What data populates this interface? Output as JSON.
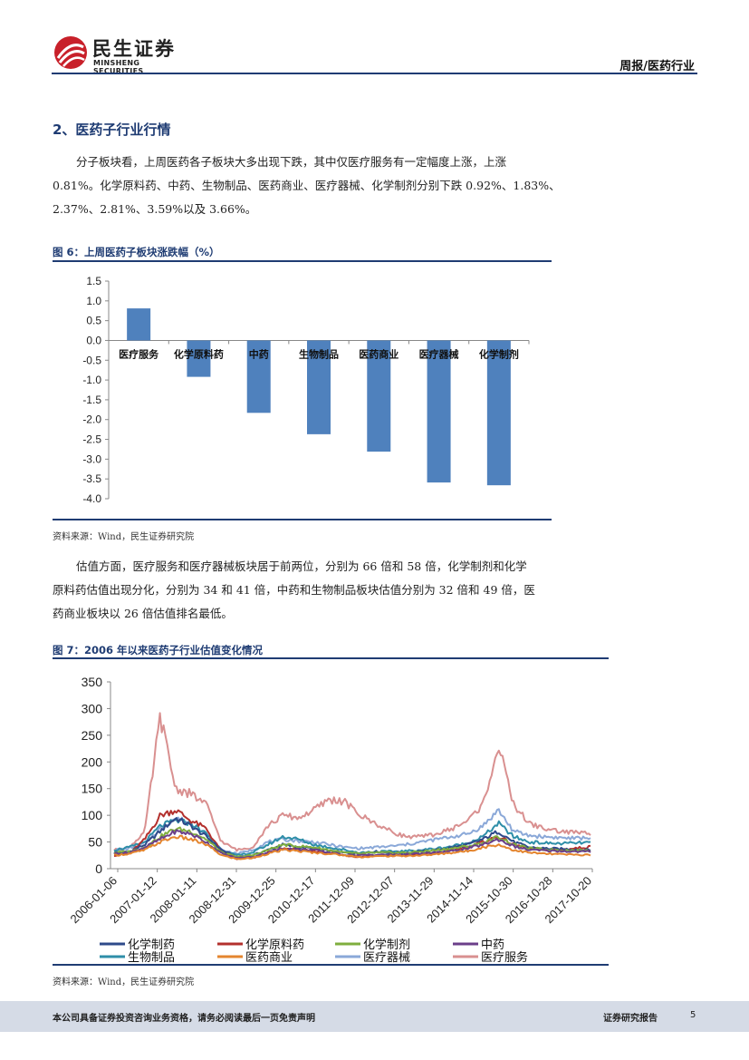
{
  "header": {
    "logo_cn": "民生证券",
    "logo_en": "MINSHENG SECURITIES",
    "report_tag": "周报/医药行业",
    "brand_color": "#c8202a"
  },
  "section": {
    "title": "2、医药子行业行情"
  },
  "paragraph1": {
    "line1": "分子板块看，上周医药各子板块大多出现下跌，其中仅医疗服务有一定幅度上涨，上涨",
    "line2": "0.81%。化学原料药、中药、生物制品、医药商业、医疗器械、化学制剂分别下跌 0.92%、1.83%、",
    "line3": "2.37%、2.81%、3.59%以及 3.66%。"
  },
  "paragraph2": {
    "line1": "估值方面，医疗服务和医疗器械板块居于前两位，分别为 66 倍和 58 倍，化学制剂和化学",
    "line2": "原料药估值出现分化，分别为 34 和 41 倍，中药和生物制品板块估值分别为 32 倍和 49 倍，医",
    "line3": "药商业板块以 26 倍估值排名最低。"
  },
  "figure6": {
    "title": "图 6：上周医药子板块涨跌幅（%）",
    "source": "资料来源：Wind，民生证券研究院"
  },
  "figure7": {
    "title": "图 7：2006 年以来医药子行业估值变化情况",
    "source": "资料来源：Wind，民生证券研究院"
  },
  "chart_data": [
    {
      "type": "bar",
      "categories": [
        "医疗服务",
        "化学原料药",
        "中药",
        "生物制品",
        "医药商业",
        "医疗器械",
        "化学制剂"
      ],
      "values": [
        0.81,
        -0.92,
        -1.83,
        -2.37,
        -2.81,
        -3.59,
        -3.66
      ],
      "ylim": [
        -4.0,
        1.5
      ],
      "yticks": [
        "1.5",
        "1.0",
        "0.5",
        "0.0",
        "-0.5",
        "-1.0",
        "-1.5",
        "-2.0",
        "-2.5",
        "-3.0",
        "-3.5",
        "-4.0"
      ],
      "color": "#4f81bd",
      "grid": false
    },
    {
      "type": "line",
      "ylim": [
        0,
        350
      ],
      "yticks": [
        "350",
        "300",
        "250",
        "200",
        "150",
        "100",
        "50",
        "0"
      ],
      "xticks": [
        "2006-01-06",
        "2007-01-12",
        "2008-01-11",
        "2008-12-31",
        "2009-12-25",
        "2010-12-17",
        "2011-12-09",
        "2012-12-07",
        "2013-11-29",
        "2014-11-14",
        "2015-10-30",
        "2016-10-28",
        "2017-10-20"
      ],
      "legend_position": "bottom",
      "series": [
        {
          "name": "化学制药",
          "color": "#2e4a8a",
          "values": [
            30,
            32,
            45,
            70,
            95,
            80,
            60,
            35,
            22,
            25,
            35,
            45,
            40,
            38,
            33,
            30,
            28,
            32,
            30,
            30,
            32,
            35,
            40,
            45,
            55,
            70,
            50,
            40,
            38,
            37,
            36,
            35
          ]
        },
        {
          "name": "化学原料药",
          "color": "#b3302d",
          "values": [
            25,
            28,
            55,
            100,
            110,
            90,
            75,
            30,
            18,
            20,
            30,
            38,
            35,
            33,
            30,
            25,
            22,
            25,
            24,
            25,
            27,
            30,
            35,
            40,
            50,
            60,
            45,
            38,
            36,
            35,
            38,
            41
          ]
        },
        {
          "name": "化学制剂",
          "color": "#7fae3e",
          "values": [
            30,
            32,
            40,
            60,
            75,
            70,
            55,
            30,
            22,
            25,
            35,
            45,
            42,
            40,
            35,
            30,
            28,
            30,
            30,
            30,
            32,
            35,
            38,
            42,
            48,
            60,
            45,
            38,
            36,
            35,
            34,
            34
          ]
        },
        {
          "name": "中药",
          "color": "#6b3f8a",
          "values": [
            28,
            30,
            40,
            55,
            70,
            65,
            50,
            28,
            20,
            22,
            30,
            38,
            36,
            35,
            30,
            26,
            25,
            26,
            26,
            27,
            28,
            30,
            33,
            38,
            45,
            55,
            42,
            35,
            34,
            33,
            32,
            32
          ]
        },
        {
          "name": "生物制品",
          "color": "#2e8ea8",
          "values": [
            35,
            40,
            50,
            80,
            90,
            85,
            65,
            35,
            25,
            30,
            45,
            60,
            55,
            45,
            40,
            35,
            30,
            32,
            32,
            33,
            35,
            38,
            42,
            48,
            60,
            85,
            60,
            50,
            48,
            47,
            48,
            49
          ]
        },
        {
          "name": "医药商业",
          "color": "#e4852e",
          "values": [
            25,
            28,
            35,
            50,
            60,
            55,
            45,
            25,
            18,
            20,
            28,
            35,
            33,
            30,
            28,
            25,
            22,
            23,
            24,
            24,
            25,
            27,
            30,
            33,
            40,
            45,
            35,
            30,
            28,
            27,
            26,
            26
          ]
        },
        {
          "name": "医疗器械",
          "color": "#8aa8d8",
          "values": [
            35,
            38,
            48,
            75,
            95,
            85,
            65,
            35,
            28,
            35,
            50,
            55,
            52,
            50,
            45,
            40,
            38,
            40,
            42,
            45,
            50,
            55,
            60,
            65,
            80,
            110,
            70,
            62,
            60,
            58,
            57,
            58
          ]
        },
        {
          "name": "医疗服务",
          "color": "#d99090",
          "values": [
            35,
            40,
            70,
            285,
            150,
            140,
            120,
            50,
            35,
            40,
            80,
            100,
            95,
            110,
            130,
            125,
            100,
            85,
            70,
            60,
            60,
            65,
            75,
            90,
            120,
            230,
            120,
            85,
            75,
            70,
            68,
            66
          ]
        }
      ]
    }
  ],
  "footer": {
    "disclaimer": "本公司具备证券投资咨询业务资格，请务必阅读最后一页免责声明",
    "report_type": "证券研究报告",
    "page_number": "5"
  }
}
